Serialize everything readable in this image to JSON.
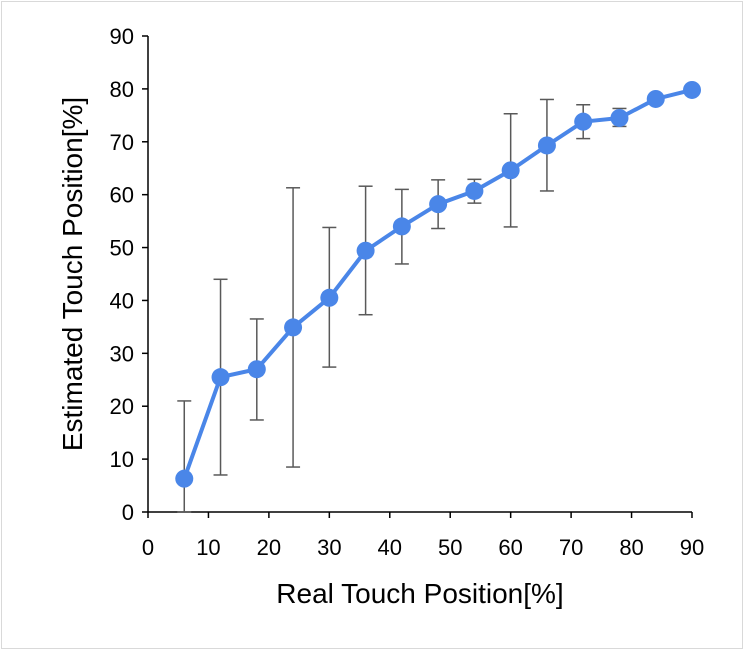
{
  "chart_data": {
    "type": "line",
    "title": "",
    "xlabel": "Real Touch Position[%]",
    "ylabel": "Estimated Touch Position[%]",
    "xlim": [
      0,
      90
    ],
    "ylim": [
      0,
      90
    ],
    "xticks": [
      "0",
      "10",
      "20",
      "30",
      "40",
      "50",
      "60",
      "70",
      "80",
      "90"
    ],
    "yticks": [
      "0",
      "10",
      "20",
      "30",
      "40",
      "50",
      "60",
      "70",
      "80",
      "90"
    ],
    "grid": false,
    "legend": "none",
    "series": [
      {
        "color": "#4a86e8",
        "x": [
          6,
          12,
          18,
          24,
          30,
          36,
          42,
          48,
          54,
          60,
          66,
          72,
          78,
          84,
          90
        ],
        "y": [
          6.3,
          25.5,
          27.0,
          34.9,
          40.5,
          49.4,
          54.0,
          58.2,
          60.7,
          64.6,
          69.3,
          73.8,
          74.5,
          78.1,
          79.8
        ],
        "error_low": [
          0,
          7.0,
          17.4,
          8.5,
          27.4,
          37.3,
          46.9,
          53.6,
          58.4,
          53.9,
          60.7,
          70.6,
          72.9,
          78.1,
          79.8
        ],
        "error_high": [
          21.0,
          44.0,
          36.5,
          61.3,
          53.8,
          61.6,
          61.0,
          62.8,
          62.9,
          75.3,
          78.0,
          77.0,
          76.3,
          78.1,
          79.8
        ]
      }
    ]
  }
}
